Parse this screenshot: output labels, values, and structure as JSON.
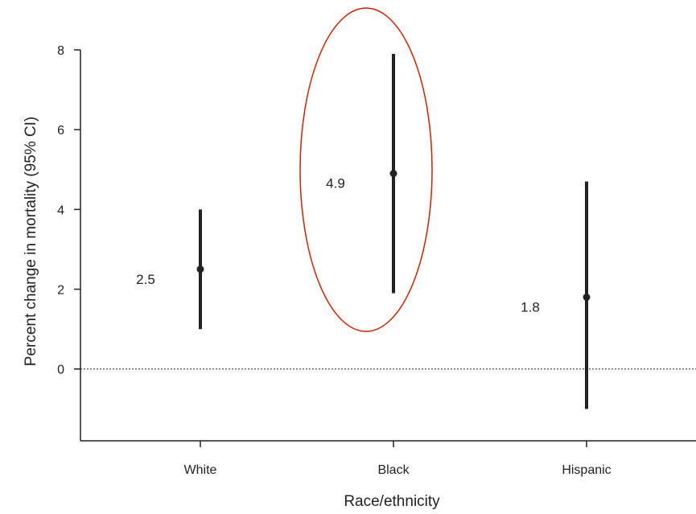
{
  "chart_data": {
    "type": "errorbar",
    "xlabel": "Race/ethnicity",
    "ylabel": "Percent change in mortality (95% CI)",
    "categories": [
      "White",
      "Black",
      "Hispanic"
    ],
    "series": [
      {
        "values": [
          2.5,
          4.9,
          1.8
        ],
        "ci_lower": [
          1.0,
          1.9,
          -1.0
        ],
        "ci_upper": [
          4.0,
          7.9,
          4.7
        ],
        "labels": [
          "2.5",
          "4.9",
          "1.8"
        ]
      }
    ],
    "ylim": [
      -1.8,
      8.0
    ],
    "yticks": [
      0,
      2,
      4,
      6,
      8
    ],
    "reference_line": {
      "y": 0,
      "style": "dotted"
    },
    "highlight": {
      "category": "Black",
      "shape": "ellipse",
      "color": "#cc2200"
    },
    "grid": false,
    "colors": {
      "marks": "#222222",
      "axis": "#222222"
    }
  }
}
